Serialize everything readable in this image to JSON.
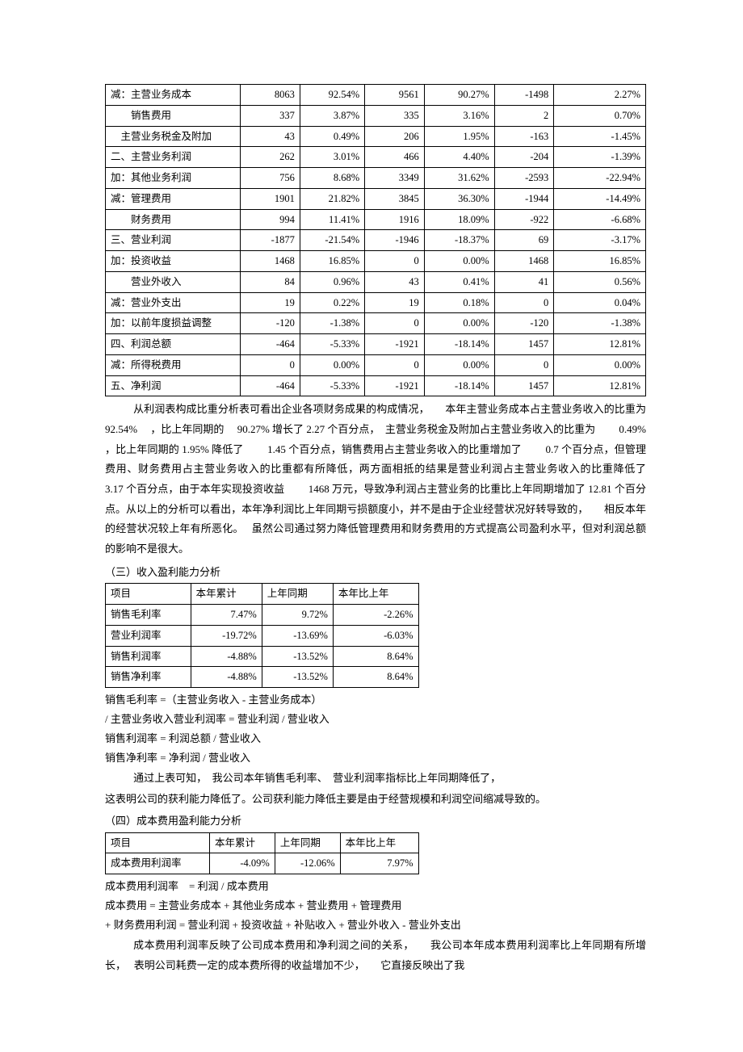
{
  "table1": {
    "col_widths": [
      "25%",
      "11%",
      "12%",
      "11%",
      "13%",
      "11%",
      "17%"
    ],
    "rows": [
      {
        "label": "减：主营业务成本",
        "c": [
          "8063",
          "92.54%",
          "9561",
          "90.27%",
          "-1498",
          "2.27%"
        ]
      },
      {
        "label": "　　销售费用",
        "c": [
          "337",
          "3.87%",
          "335",
          "3.16%",
          "2",
          "0.70%"
        ]
      },
      {
        "label": "　主营业务税金及附加",
        "c": [
          "43",
          "0.49%",
          "206",
          "1.95%",
          "-163",
          "-1.45%"
        ]
      },
      {
        "label": "二、主营业务利润",
        "c": [
          "262",
          "3.01%",
          "466",
          "4.40%",
          "-204",
          "-1.39%"
        ]
      },
      {
        "label": "加：其他业务利润",
        "c": [
          "756",
          "8.68%",
          "3349",
          "31.62%",
          "-2593",
          "-22.94%"
        ]
      },
      {
        "label": "减：管理费用",
        "c": [
          "1901",
          "21.82%",
          "3845",
          "36.30%",
          "-1944",
          "-14.49%"
        ]
      },
      {
        "label": "　　财务费用",
        "c": [
          "994",
          "11.41%",
          "1916",
          "18.09%",
          "-922",
          "-6.68%"
        ]
      },
      {
        "label": "三、营业利润",
        "c": [
          "-1877",
          "-21.54%",
          "-1946",
          "-18.37%",
          "69",
          "-3.17%"
        ]
      },
      {
        "label": "加：投资收益",
        "c": [
          "1468",
          "16.85%",
          "0",
          "0.00%",
          "1468",
          "16.85%"
        ]
      },
      {
        "label": "　　营业外收入",
        "c": [
          "84",
          "0.96%",
          "43",
          "0.41%",
          "41",
          "0.56%"
        ]
      },
      {
        "label": "减：营业外支出",
        "c": [
          "19",
          "0.22%",
          "19",
          "0.18%",
          "0",
          "0.04%"
        ]
      },
      {
        "label": "加：以前年度损益调整",
        "c": [
          "-120",
          "-1.38%",
          "0",
          "0.00%",
          "-120",
          "-1.38%"
        ]
      },
      {
        "label": "四、利润总额",
        "c": [
          "-464",
          "-5.33%",
          "-1921",
          "-18.14%",
          "1457",
          "12.81%"
        ]
      },
      {
        "label": "减：所得税费用",
        "c": [
          "0",
          "0.00%",
          "0",
          "0.00%",
          "0",
          "0.00%"
        ]
      },
      {
        "label": "五、净利润",
        "c": [
          "-464",
          "-5.33%",
          "-1921",
          "-18.14%",
          "1457",
          "12.81%"
        ]
      }
    ]
  },
  "para1": "从利润表构成比重分析表可看出企业各项财务成果的构成情况，　　本年主营业务成本占主营业务收入的比重为　 92.54% 　，比上年同期的　 90.27% 增长了  2.27 个百分点，　主营业务税金及附加占主营业务收入的比重为　　 0.49% ，比上年同期的  1.95% 降低了　　 1.45 个百分点，销售费用占主营业务收入的比重增加了　　 0.7 个百分点，但管理费用、财务费用占主营业务收入的比重都有所降低，两方面相抵的结果是营业利润占主营业务收入的比重降低了　　　　 3.17 个百分点，由于本年实现投资收益　　 1468 万元，导致净利润占主营业务的比重比上年同期增加了 12.81 个百分点。从以上的分析可以看出，本年净利润比上年同期亏损额度小，并不是由于企业经营状况好转导致的，　　相反本年的经营状况较上年有所恶化。　 虽然公司通过努力降低管理费用和财务费用的方式提高公司盈利水平，但对利润总额的影响不是很大。",
  "heading1": "（三）收入盈利能力分析",
  "table2": {
    "headers": [
      "项目",
      "本年累计",
      "上年同期",
      "本年比上年"
    ],
    "rows": [
      {
        "label": "销售毛利率",
        "c": [
          "7.47%",
          "9.72%",
          "-2.26%"
        ]
      },
      {
        "label": "营业利润率",
        "c": [
          "-19.72%",
          "-13.69%",
          "-6.03%"
        ]
      },
      {
        "label": "销售利润率",
        "c": [
          "-4.88%",
          "-13.52%",
          "8.64%"
        ]
      },
      {
        "label": "销售净利率",
        "c": [
          "-4.88%",
          "-13.52%",
          "8.64%"
        ]
      }
    ]
  },
  "formulas1": [
    "销售毛利率 =（主营业务收入 - 主营业务成本）",
    "/ 主营业务收入营业利润率 = 营业利润 / 营业收入",
    "销售利润率 = 利润总额 / 营业收入",
    "销售净利率 = 净利润 / 营业收入"
  ],
  "para2a": "通过上表可知，　我公司本年销售毛利率、　营业利润率指标比上年同期降低了，",
  "para2b": "这表明公司的获利能力降低了。公司获利能力降低主要是由于经营规模和利润空间缩减导致的。",
  "heading2": "（四）成本费用盈利能力分析",
  "table3": {
    "headers": [
      "项目",
      "本年累计",
      "上年同期",
      "本年比上年"
    ],
    "rows": [
      {
        "label": "成本费用利润率",
        "c": [
          "-4.09%",
          "-12.06%",
          "7.97%"
        ]
      }
    ]
  },
  "formulas2": [
    "成本费用利润率　= 利润 / 成本费用",
    "成本费用 = 主营业务成本 + 其他业务成本 + 营业费用 + 管理费用",
    "+ 财务费用利润 = 营业利润 + 投资收益 + 补贴收入 + 营业外收入 - 营业外支出"
  ],
  "para3": "成本费用利润率反映了公司成本费用和净利润之间的关系，　　我公司本年成本费用利润率比上年同期有所增长，　 表明公司耗费一定的成本费所得的收益增加不少，　　它直接反映出了我"
}
